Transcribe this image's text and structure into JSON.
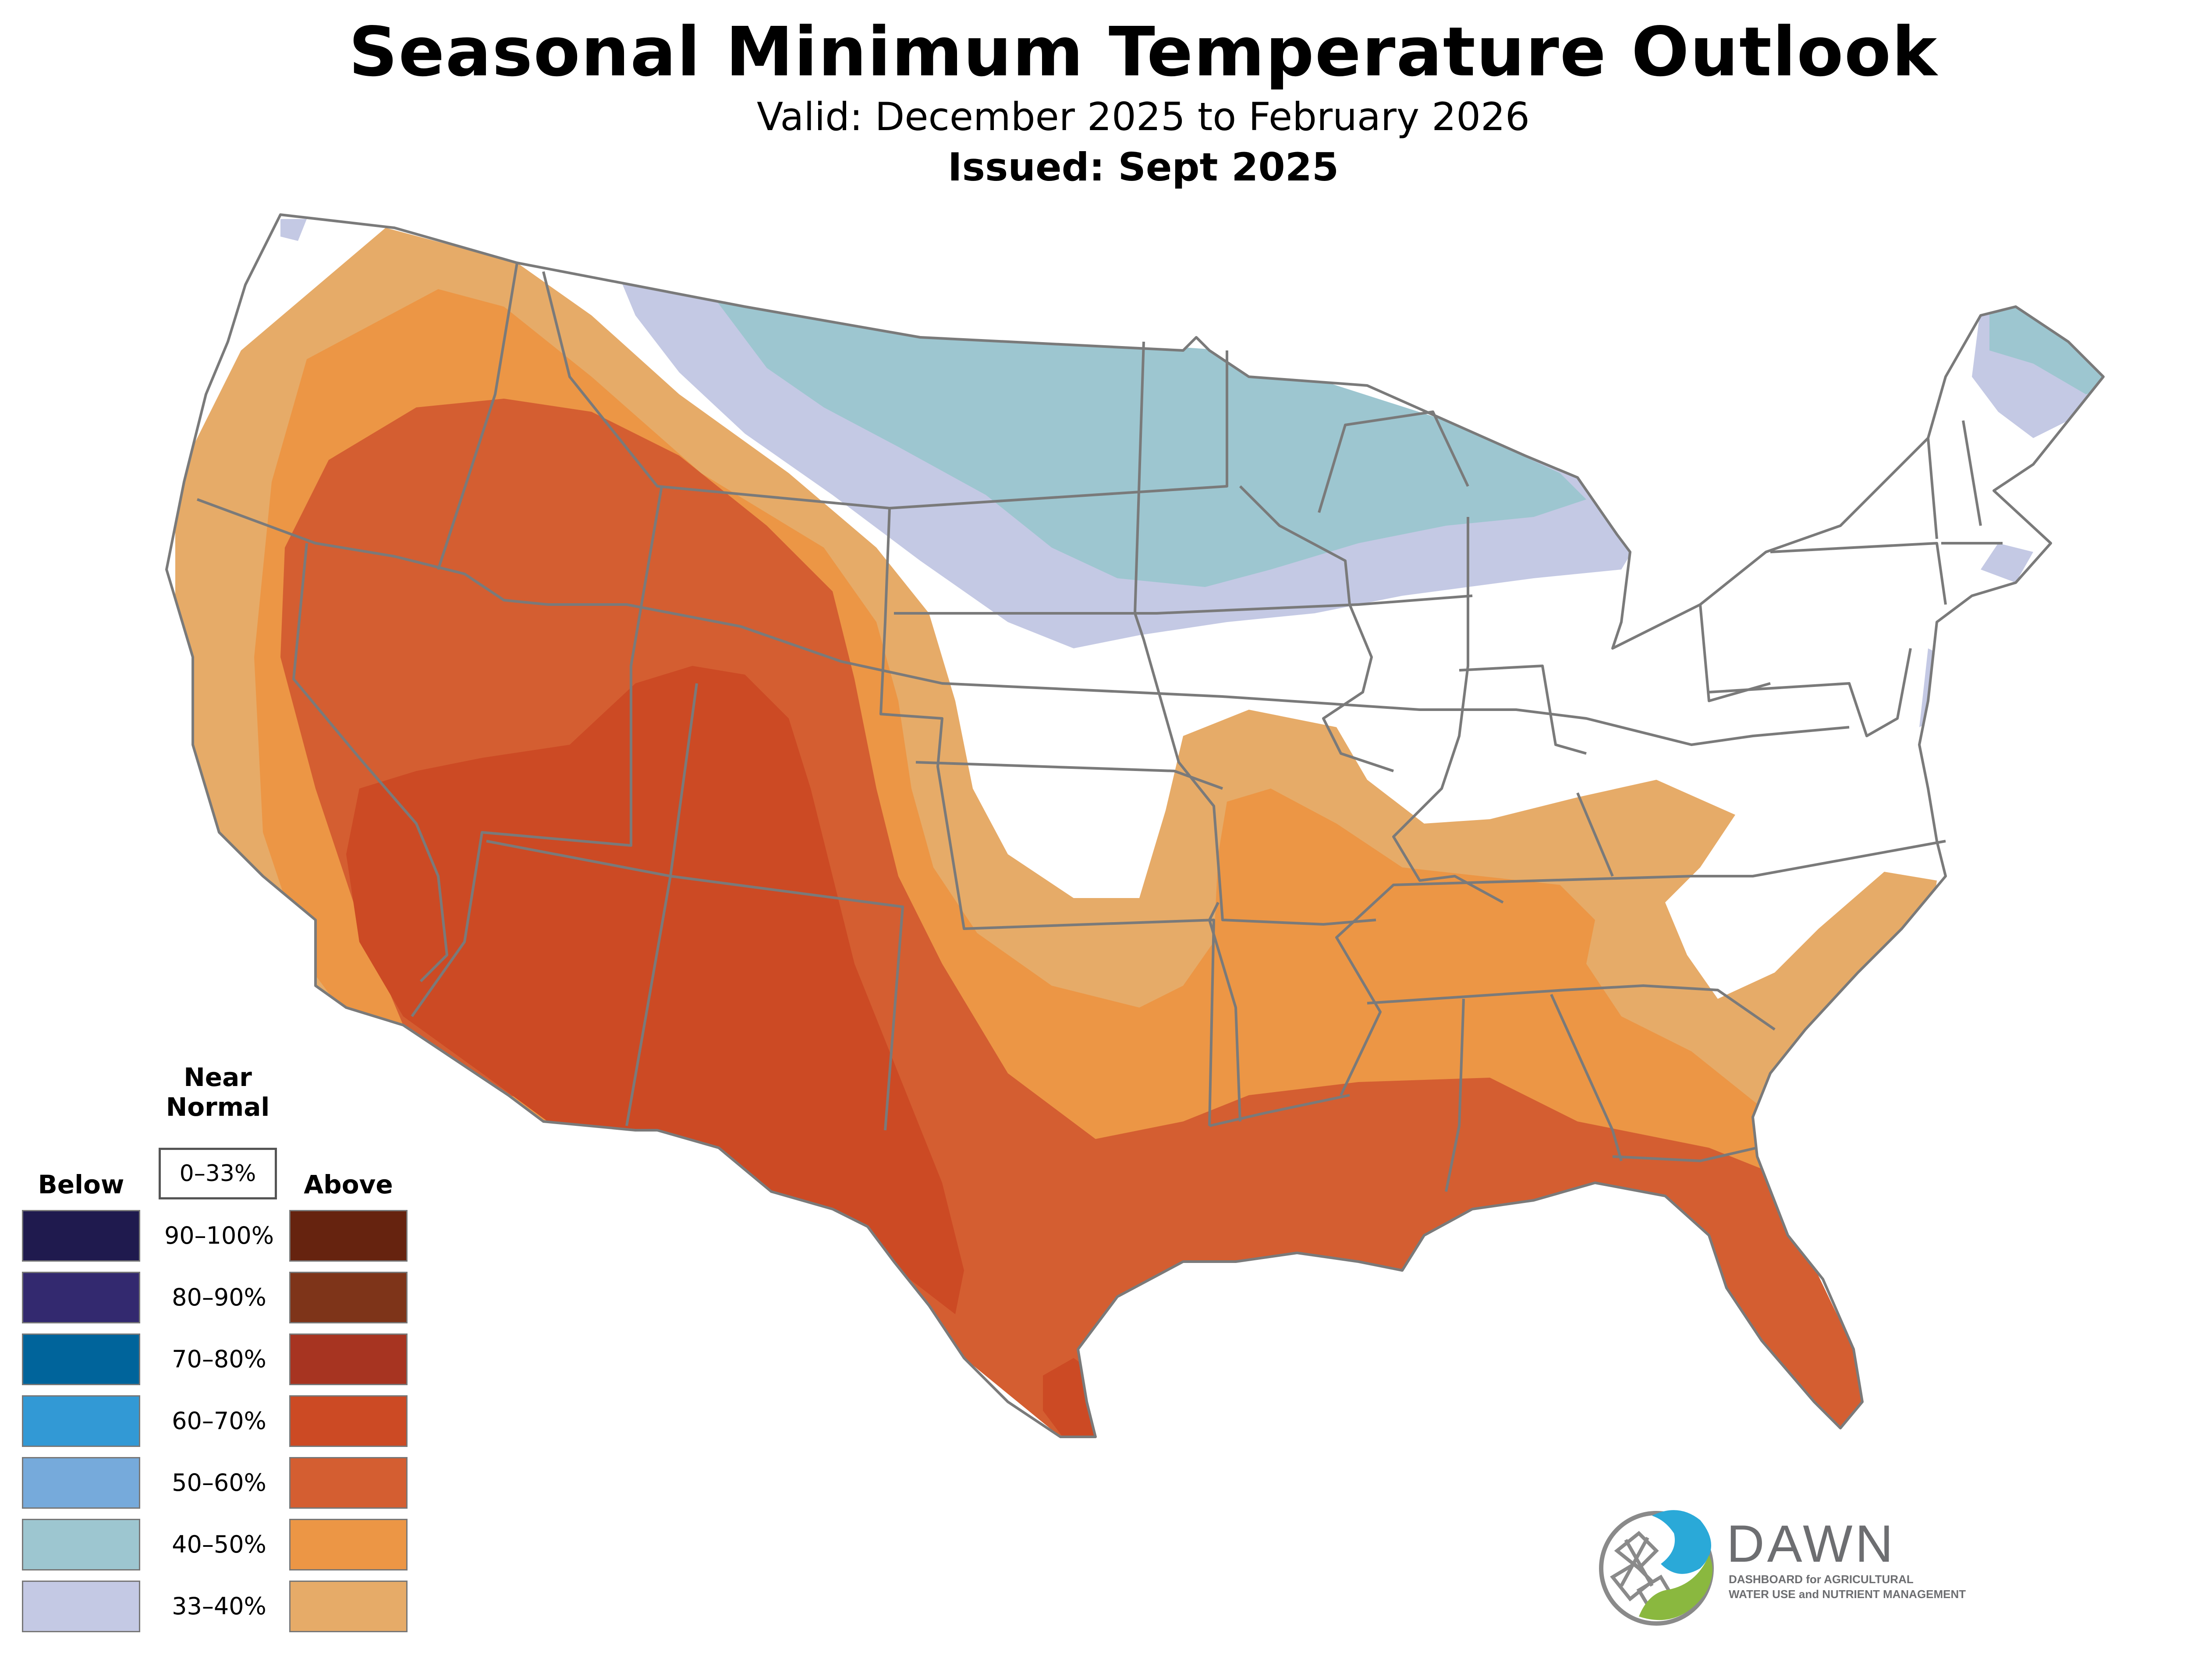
{
  "header": {
    "title": "Seasonal Minimum Temperature Outlook",
    "valid": "Valid: December 2025 to February 2026",
    "issued": "Issued: Sept 2025"
  },
  "legend": {
    "below_label": "Below",
    "near_label_line1": "Near",
    "near_label_line2": "Normal",
    "near_range": "0–33%",
    "above_label": "Above",
    "ranges": [
      "90–100%",
      "80–90%",
      "70–80%",
      "60–70%",
      "50–60%",
      "40–50%",
      "33–40%"
    ],
    "below_colors": [
      "#1f1a4e",
      "#33296f",
      "#00649b",
      "#3299d5",
      "#76aadb",
      "#9dc6d0",
      "#c4c9e4"
    ],
    "above_colors": [
      "#66230f",
      "#7e3419",
      "#a73421",
      "#cc4a24",
      "#d45e31",
      "#ec9645",
      "#e6ab68"
    ]
  },
  "map": {
    "colors": {
      "above_33_40": "#e6ab68",
      "above_40_50": "#ec9645",
      "above_50_60": "#d45e31",
      "above_60_70": "#cc4a24",
      "below_33_40": "#c4c9e4",
      "below_40_50": "#9dc6d0",
      "border": "#7a7a7a"
    }
  },
  "logo": {
    "name": "DAWN",
    "tagline_line1": "DASHBOARD for AGRICULTURAL",
    "tagline_line2": "WATER USE and NUTRIENT MANAGEMENT",
    "blue": "#2aa9d8",
    "green": "#8ab83f",
    "gray": "#6d6e71"
  }
}
